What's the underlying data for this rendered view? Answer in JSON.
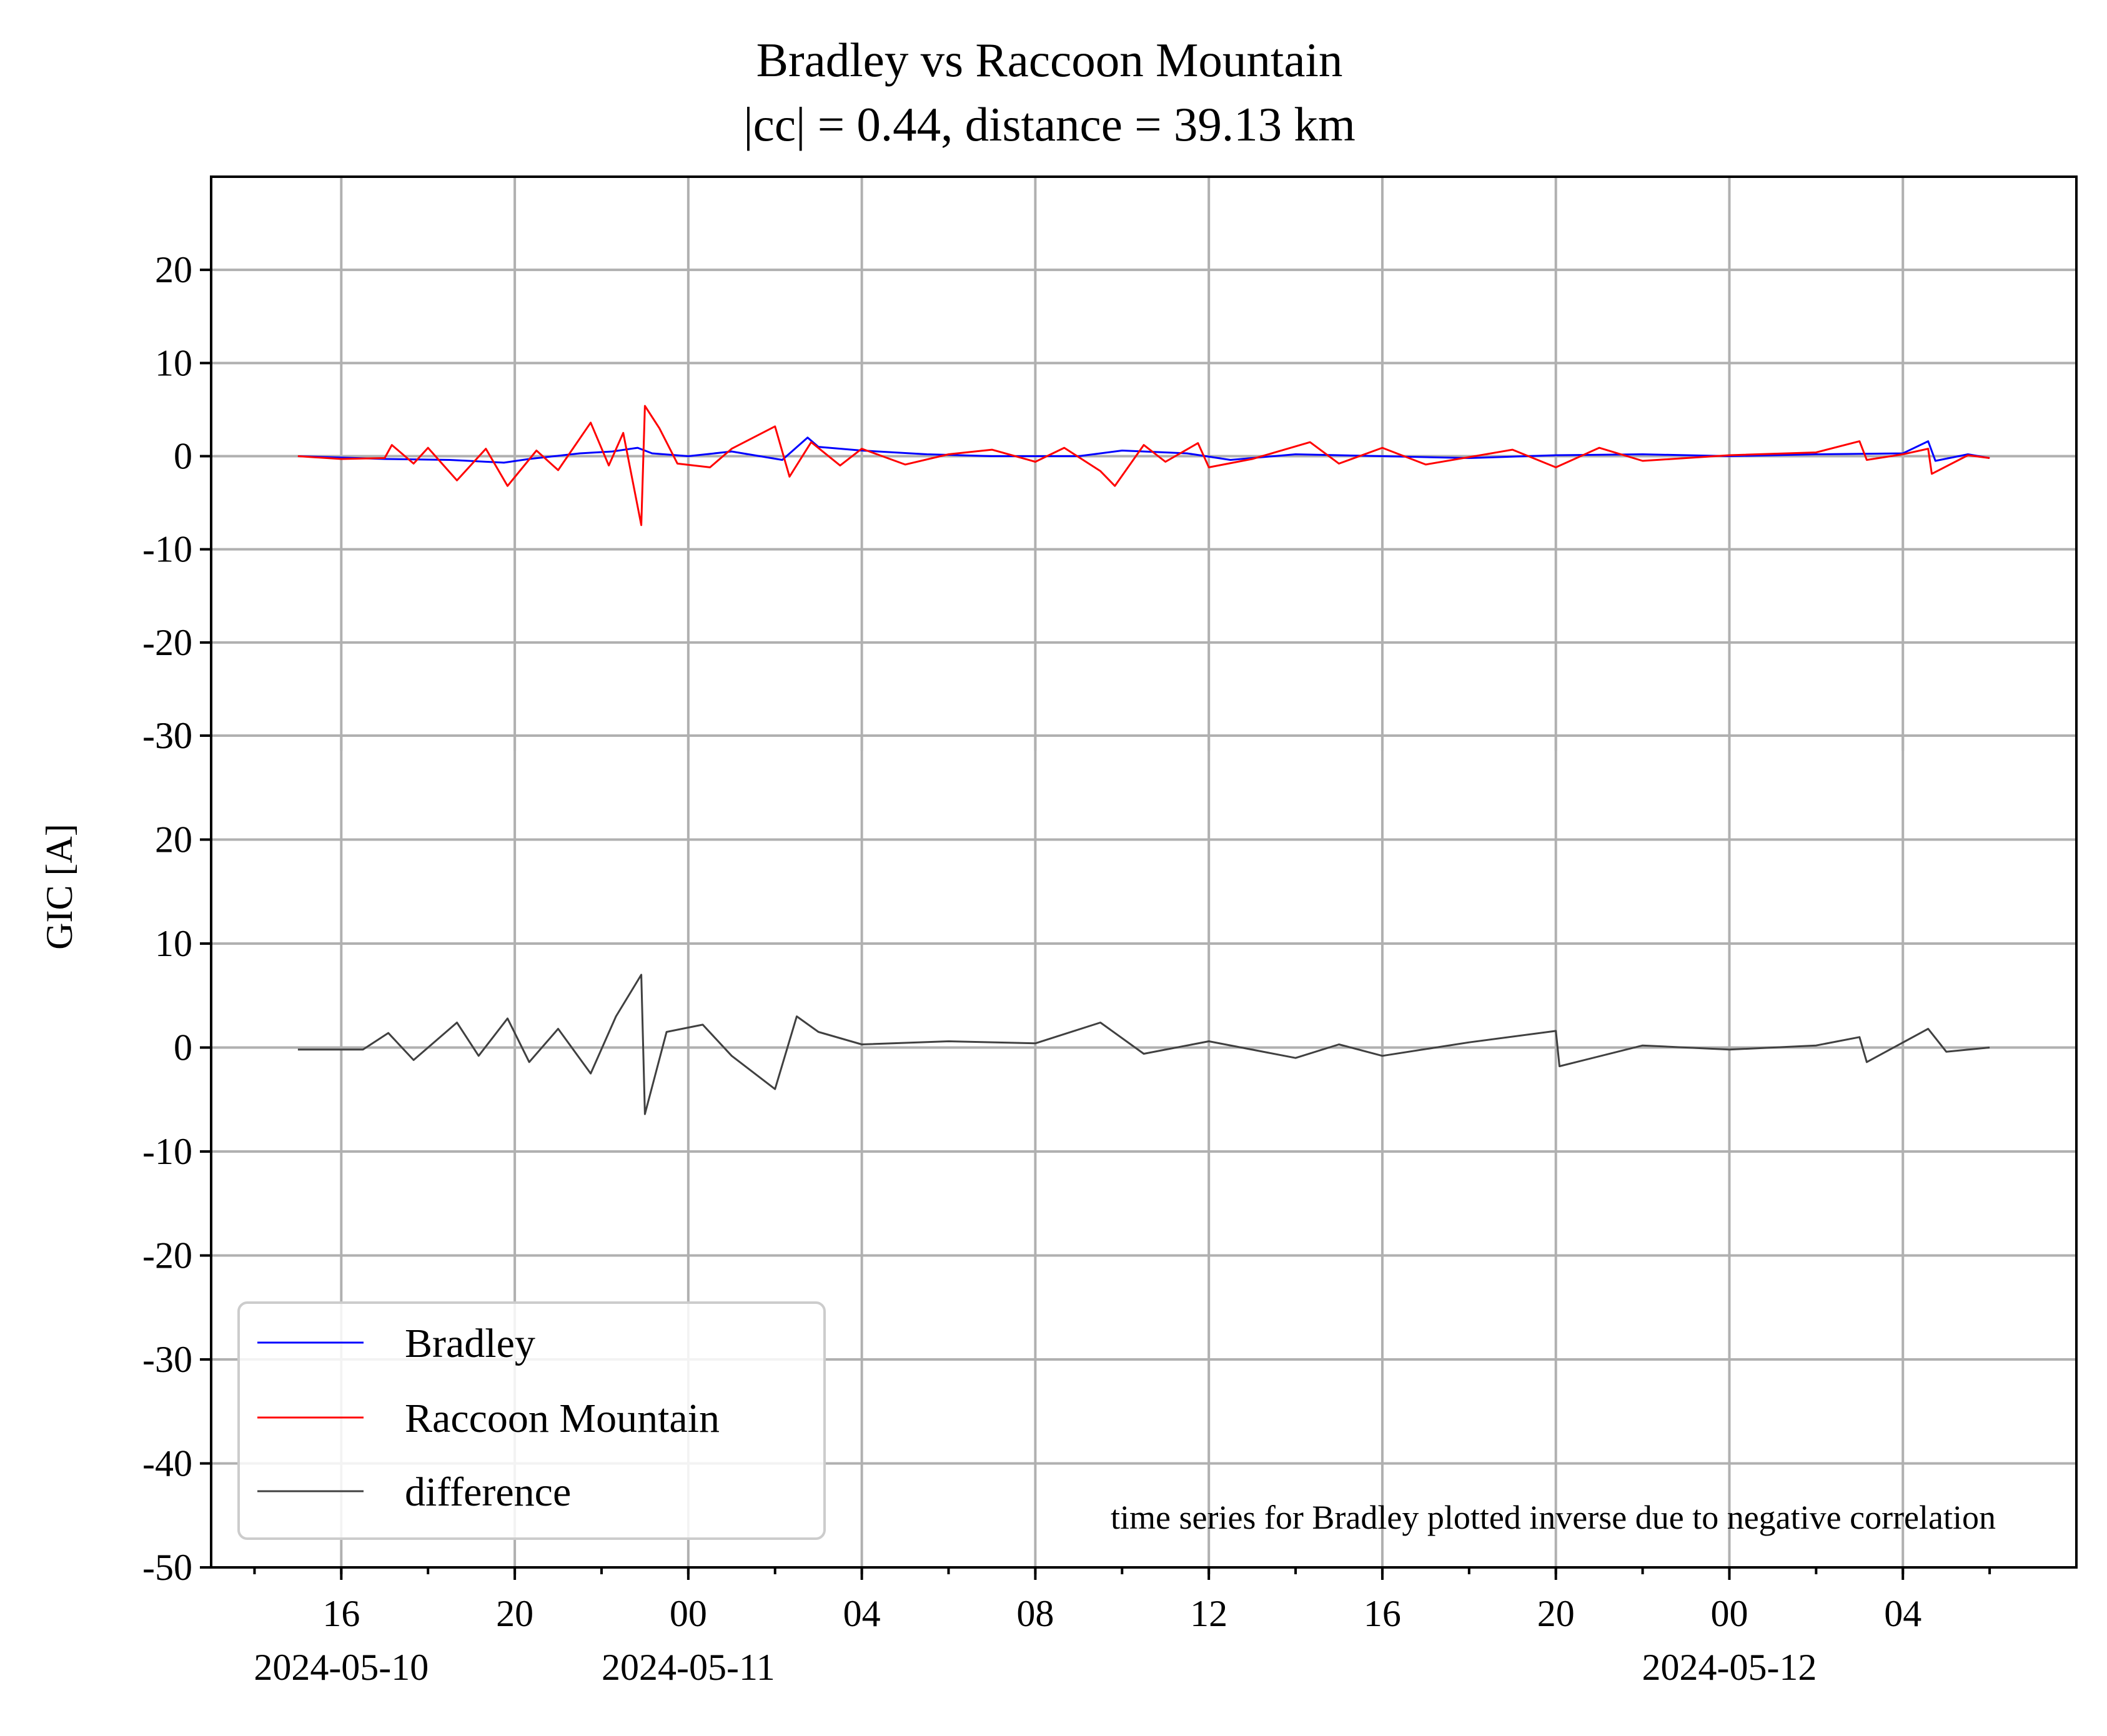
{
  "chart_data": {
    "type": "line",
    "title": "Bradley vs Raccoon Mountain",
    "subtitle": "|cc| = 0.44, distance = 39.13 km",
    "ylabel": "GIC [A]",
    "xlabel": "",
    "x_range": [
      "2024-05-10T13:00",
      "2024-05-12T08:00"
    ],
    "x_ticks": [
      {
        "time": "2024-05-10T16:00",
        "label": "16",
        "date": "2024-05-10"
      },
      {
        "time": "2024-05-10T20:00",
        "label": "20",
        "date": ""
      },
      {
        "time": "2024-05-11T00:00",
        "label": "00",
        "date": "2024-05-11"
      },
      {
        "time": "2024-05-11T04:00",
        "label": "04",
        "date": ""
      },
      {
        "time": "2024-05-11T08:00",
        "label": "08",
        "date": ""
      },
      {
        "time": "2024-05-11T12:00",
        "label": "12",
        "date": ""
      },
      {
        "time": "2024-05-11T16:00",
        "label": "16",
        "date": ""
      },
      {
        "time": "2024-05-11T20:00",
        "label": "20",
        "date": ""
      },
      {
        "time": "2024-05-12T00:00",
        "label": "00",
        "date": "2024-05-12"
      },
      {
        "time": "2024-05-12T04:00",
        "label": "04",
        "date": ""
      }
    ],
    "grid": true,
    "legend_position": "lower-left",
    "annotation": "time series for Bradley plotted inverse due to negative correlation",
    "colors": {
      "bradley": "#0000ff",
      "raccoon": "#ff0000",
      "difference": "#404040"
    },
    "panels": [
      {
        "id": "top",
        "ylim": [
          -30,
          30
        ],
        "yticks": [
          "-30",
          "-20",
          "-10",
          "0",
          "10",
          "20"
        ],
        "series": [
          {
            "name": "Bradley",
            "color": "#0000ff",
            "points": [
              [
                "2024-05-10T15:00",
                0.0
              ],
              [
                "2024-05-10T17:00",
                -0.3
              ],
              [
                "2024-05-10T18:30",
                -0.4
              ],
              [
                "2024-05-10T19:45",
                -0.7
              ],
              [
                "2024-05-10T20:20",
                -0.3
              ],
              [
                "2024-05-10T21:30",
                0.3
              ],
              [
                "2024-05-10T22:15",
                0.5
              ],
              [
                "2024-05-10T22:50",
                0.9
              ],
              [
                "2024-05-10T23:10",
                0.3
              ],
              [
                "2024-05-11T00:00",
                0.0
              ],
              [
                "2024-05-11T01:00",
                0.5
              ],
              [
                "2024-05-11T02:10",
                -0.4
              ],
              [
                "2024-05-11T02:45",
                2.0
              ],
              [
                "2024-05-11T03:00",
                1.0
              ],
              [
                "2024-05-11T04:00",
                0.6
              ],
              [
                "2024-05-11T05:30",
                0.2
              ],
              [
                "2024-05-11T07:00",
                0.0
              ],
              [
                "2024-05-11T09:00",
                0.0
              ],
              [
                "2024-05-11T10:00",
                0.6
              ],
              [
                "2024-05-11T11:30",
                0.3
              ],
              [
                "2024-05-11T12:30",
                -0.4
              ],
              [
                "2024-05-11T14:00",
                0.2
              ],
              [
                "2024-05-11T16:00",
                0.0
              ],
              [
                "2024-05-11T18:00",
                -0.2
              ],
              [
                "2024-05-11T20:00",
                0.1
              ],
              [
                "2024-05-11T22:00",
                0.2
              ],
              [
                "2024-05-12T00:00",
                0.0
              ],
              [
                "2024-05-12T02:00",
                0.2
              ],
              [
                "2024-05-12T04:00",
                0.3
              ],
              [
                "2024-05-12T04:35",
                1.6
              ],
              [
                "2024-05-12T04:45",
                -0.5
              ],
              [
                "2024-05-12T05:30",
                0.2
              ],
              [
                "2024-05-12T06:00",
                -0.2
              ]
            ]
          },
          {
            "name": "Raccoon Mountain",
            "color": "#ff0000",
            "points": [
              [
                "2024-05-10T15:00",
                0.0
              ],
              [
                "2024-05-10T16:00",
                -0.3
              ],
              [
                "2024-05-10T17:00",
                -0.2
              ],
              [
                "2024-05-10T17:10",
                1.2
              ],
              [
                "2024-05-10T17:40",
                -0.8
              ],
              [
                "2024-05-10T18:00",
                0.9
              ],
              [
                "2024-05-10T18:40",
                -2.6
              ],
              [
                "2024-05-10T19:20",
                0.8
              ],
              [
                "2024-05-10T19:50",
                -3.2
              ],
              [
                "2024-05-10T20:30",
                0.6
              ],
              [
                "2024-05-10T21:00",
                -1.5
              ],
              [
                "2024-05-10T21:45",
                3.6
              ],
              [
                "2024-05-10T22:10",
                -1.0
              ],
              [
                "2024-05-10T22:30",
                2.5
              ],
              [
                "2024-05-10T22:55",
                -7.4
              ],
              [
                "2024-05-10T23:00",
                5.4
              ],
              [
                "2024-05-10T23:20",
                3.0
              ],
              [
                "2024-05-10T23:45",
                -0.8
              ],
              [
                "2024-05-11T00:30",
                -1.2
              ],
              [
                "2024-05-11T01:00",
                0.8
              ],
              [
                "2024-05-11T02:00",
                3.2
              ],
              [
                "2024-05-11T02:20",
                -2.2
              ],
              [
                "2024-05-11T02:50",
                1.5
              ],
              [
                "2024-05-11T03:30",
                -1.0
              ],
              [
                "2024-05-11T04:00",
                0.8
              ],
              [
                "2024-05-11T05:00",
                -0.9
              ],
              [
                "2024-05-11T06:00",
                0.2
              ],
              [
                "2024-05-11T07:00",
                0.7
              ],
              [
                "2024-05-11T08:00",
                -0.6
              ],
              [
                "2024-05-11T08:40",
                0.9
              ],
              [
                "2024-05-11T09:30",
                -1.6
              ],
              [
                "2024-05-11T09:50",
                -3.2
              ],
              [
                "2024-05-11T10:30",
                1.2
              ],
              [
                "2024-05-11T11:00",
                -0.6
              ],
              [
                "2024-05-11T11:45",
                1.4
              ],
              [
                "2024-05-11T12:00",
                -1.2
              ],
              [
                "2024-05-11T13:00",
                -0.3
              ],
              [
                "2024-05-11T14:20",
                1.5
              ],
              [
                "2024-05-11T15:00",
                -0.8
              ],
              [
                "2024-05-11T16:00",
                0.9
              ],
              [
                "2024-05-11T17:00",
                -0.9
              ],
              [
                "2024-05-11T19:00",
                0.7
              ],
              [
                "2024-05-11T20:00",
                -1.2
              ],
              [
                "2024-05-11T21:00",
                0.9
              ],
              [
                "2024-05-11T22:00",
                -0.5
              ],
              [
                "2024-05-12T00:00",
                0.1
              ],
              [
                "2024-05-12T02:00",
                0.4
              ],
              [
                "2024-05-12T03:00",
                1.6
              ],
              [
                "2024-05-12T03:10",
                -0.4
              ],
              [
                "2024-05-12T04:00",
                0.2
              ],
              [
                "2024-05-12T04:35",
                0.8
              ],
              [
                "2024-05-12T04:40",
                -1.9
              ],
              [
                "2024-05-12T05:30",
                0.1
              ],
              [
                "2024-05-12T06:00",
                -0.2
              ]
            ]
          }
        ]
      },
      {
        "id": "bottom",
        "ylim": [
          -50,
          30
        ],
        "yticks": [
          "-50",
          "-40",
          "-30",
          "-20",
          "-10",
          "0",
          "10",
          "20",
          "30"
        ],
        "series": [
          {
            "name": "difference",
            "color": "#404040",
            "points": [
              [
                "2024-05-10T15:00",
                -0.2
              ],
              [
                "2024-05-10T16:30",
                -0.2
              ],
              [
                "2024-05-10T17:05",
                1.4
              ],
              [
                "2024-05-10T17:40",
                -1.2
              ],
              [
                "2024-05-10T18:40",
                2.4
              ],
              [
                "2024-05-10T19:10",
                -0.8
              ],
              [
                "2024-05-10T19:50",
                2.8
              ],
              [
                "2024-05-10T20:20",
                -1.4
              ],
              [
                "2024-05-10T21:00",
                1.8
              ],
              [
                "2024-05-10T21:45",
                -2.5
              ],
              [
                "2024-05-10T22:20",
                3.0
              ],
              [
                "2024-05-10T22:55",
                7.0
              ],
              [
                "2024-05-10T23:00",
                -6.4
              ],
              [
                "2024-05-10T23:30",
                1.5
              ],
              [
                "2024-05-11T00:20",
                2.2
              ],
              [
                "2024-05-11T01:00",
                -0.8
              ],
              [
                "2024-05-11T02:00",
                -4.0
              ],
              [
                "2024-05-11T02:30",
                3.0
              ],
              [
                "2024-05-11T03:00",
                1.5
              ],
              [
                "2024-05-11T04:00",
                0.3
              ],
              [
                "2024-05-11T06:00",
                0.6
              ],
              [
                "2024-05-11T08:00",
                0.4
              ],
              [
                "2024-05-11T09:30",
                2.4
              ],
              [
                "2024-05-11T10:30",
                -0.6
              ],
              [
                "2024-05-11T12:00",
                0.6
              ],
              [
                "2024-05-11T14:00",
                -1.0
              ],
              [
                "2024-05-11T15:00",
                0.3
              ],
              [
                "2024-05-11T16:00",
                -0.8
              ],
              [
                "2024-05-11T18:00",
                0.5
              ],
              [
                "2024-05-11T20:00",
                1.6
              ],
              [
                "2024-05-11T20:05",
                -1.8
              ],
              [
                "2024-05-11T22:00",
                0.2
              ],
              [
                "2024-05-12T00:00",
                -0.2
              ],
              [
                "2024-05-12T02:00",
                0.2
              ],
              [
                "2024-05-12T03:00",
                1.0
              ],
              [
                "2024-05-12T03:10",
                -1.4
              ],
              [
                "2024-05-12T04:35",
                1.8
              ],
              [
                "2024-05-12T05:00",
                -0.4
              ],
              [
                "2024-05-12T06:00",
                0.0
              ]
            ]
          }
        ]
      }
    ]
  }
}
